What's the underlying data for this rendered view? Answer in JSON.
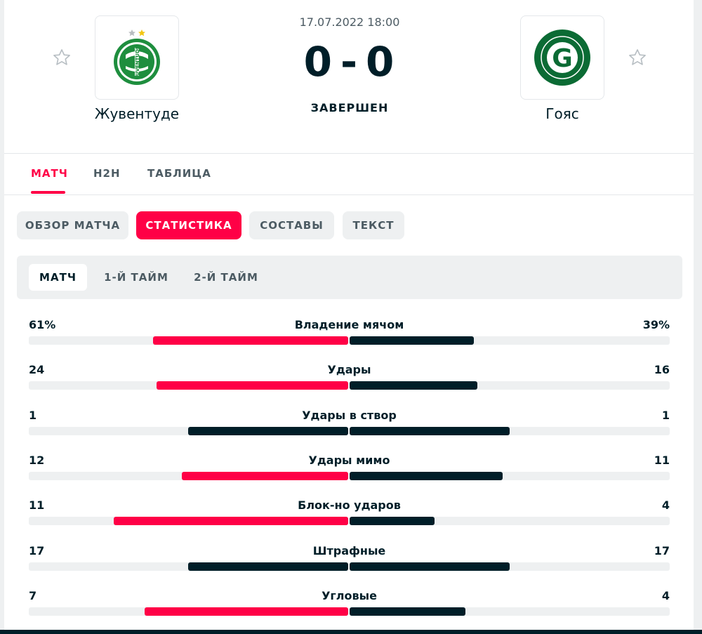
{
  "match": {
    "date": "17.07.2022 18:00",
    "home_score": "0",
    "score_separator": "-",
    "away_score": "0",
    "status": "ЗАВЕРШЕН"
  },
  "home_team": {
    "name": "Жувентуде",
    "logo_text": "JUVENTUDE",
    "logo_colors": [
      "#1e8e3e",
      "#ffffff",
      "#f3c613"
    ]
  },
  "away_team": {
    "name": "Гояс",
    "logo_letter": "G",
    "logo_colors": [
      "#0b6b34",
      "#ffffff"
    ]
  },
  "favorites": {
    "home_icon": "star-outline-icon",
    "away_icon": "star-outline-icon"
  },
  "main_tabs": [
    {
      "label": "МАТЧ",
      "active": true
    },
    {
      "label": "H2H",
      "active": false
    },
    {
      "label": "ТАБЛИЦА",
      "active": false
    }
  ],
  "sub_tabs": [
    {
      "label": "ОБЗОР МАТЧА",
      "active": false
    },
    {
      "label": "СТАТИСТИКА",
      "active": true
    },
    {
      "label": "СОСТАВЫ",
      "active": false
    },
    {
      "label": "ТЕКСТ",
      "active": false
    }
  ],
  "period_tabs": [
    {
      "label": "МАТЧ",
      "active": true
    },
    {
      "label": "1-Й ТАЙМ",
      "active": false
    },
    {
      "label": "2-Й ТАЙМ",
      "active": false
    }
  ],
  "colors": {
    "accent": "#ff0046",
    "dark": "#001e28",
    "muted": "#4c5b63",
    "track": "#eef0f1"
  },
  "stats": [
    {
      "label": "Владение мячом",
      "home": "61%",
      "away": "39%",
      "home_value": 61,
      "away_value": 39
    },
    {
      "label": "Удары",
      "home": "24",
      "away": "16",
      "home_value": 24,
      "away_value": 16
    },
    {
      "label": "Удары в створ",
      "home": "1",
      "away": "1",
      "home_value": 1,
      "away_value": 1
    },
    {
      "label": "Удары мимо",
      "home": "12",
      "away": "11",
      "home_value": 12,
      "away_value": 11
    },
    {
      "label": "Блок-но ударов",
      "home": "11",
      "away": "4",
      "home_value": 11,
      "away_value": 4
    },
    {
      "label": "Штрафные",
      "home": "17",
      "away": "17",
      "home_value": 17,
      "away_value": 17
    },
    {
      "label": "Угловые",
      "home": "7",
      "away": "4",
      "home_value": 7,
      "away_value": 4
    }
  ]
}
